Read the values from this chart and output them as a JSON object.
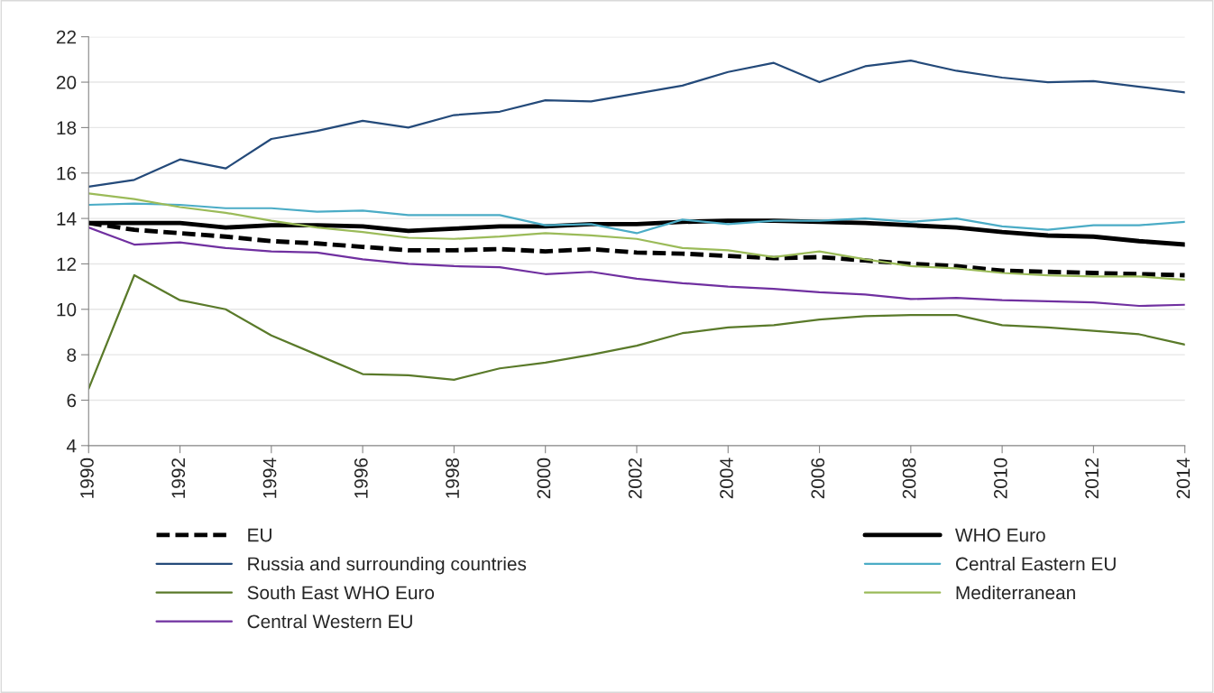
{
  "chart_data": {
    "type": "line",
    "x": [
      1990,
      1991,
      1992,
      1993,
      1994,
      1995,
      1996,
      1997,
      1998,
      1999,
      2000,
      2001,
      2002,
      2003,
      2004,
      2005,
      2006,
      2007,
      2008,
      2009,
      2010,
      2011,
      2012,
      2013,
      2014
    ],
    "xlim": [
      1990,
      2014
    ],
    "xticks": [
      1990,
      1992,
      1994,
      1996,
      1998,
      2000,
      2002,
      2004,
      2006,
      2008,
      2010,
      2012,
      2014
    ],
    "ylim": [
      4,
      22
    ],
    "yticks": [
      4,
      6,
      8,
      10,
      12,
      14,
      16,
      18,
      20,
      22
    ],
    "grid": "y",
    "legend": "bottom",
    "series": [
      {
        "name": "EU",
        "color": "#000000",
        "line_style": "dashed",
        "values": [
          13.8,
          13.5,
          13.35,
          13.2,
          13.0,
          12.9,
          12.75,
          12.6,
          12.6,
          12.65,
          12.55,
          12.65,
          12.5,
          12.45,
          12.35,
          12.25,
          12.3,
          12.15,
          12.0,
          11.9,
          11.7,
          11.65,
          11.6,
          11.55,
          11.5
        ]
      },
      {
        "name": "WHO Euro",
        "color": "#000000",
        "line_style": "solid",
        "values": [
          13.8,
          13.8,
          13.8,
          13.6,
          13.7,
          13.7,
          13.65,
          13.45,
          13.55,
          13.65,
          13.65,
          13.75,
          13.75,
          13.85,
          13.9,
          13.9,
          13.85,
          13.8,
          13.7,
          13.6,
          13.4,
          13.25,
          13.2,
          13.0,
          12.85
        ]
      },
      {
        "name": "Russia and surrounding countries",
        "color": "#244a7a",
        "line_style": "solid",
        "values": [
          15.4,
          15.7,
          16.6,
          16.2,
          17.5,
          17.85,
          18.3,
          18.0,
          18.55,
          18.7,
          19.2,
          19.15,
          19.5,
          19.85,
          20.45,
          20.85,
          20.0,
          20.7,
          20.95,
          20.5,
          20.2,
          20.0,
          20.05,
          19.8,
          19.55
        ]
      },
      {
        "name": "Central Eastern EU",
        "color": "#4bacc6",
        "line_style": "solid",
        "values": [
          14.6,
          14.65,
          14.6,
          14.45,
          14.45,
          14.3,
          14.35,
          14.15,
          14.15,
          14.15,
          13.7,
          13.75,
          13.35,
          13.95,
          13.75,
          13.9,
          13.9,
          14.0,
          13.85,
          14.0,
          13.65,
          13.5,
          13.7,
          13.7,
          13.85
        ]
      },
      {
        "name": "South East WHO Euro",
        "color": "#5a7a2a",
        "line_style": "solid",
        "values": [
          6.5,
          11.5,
          10.4,
          10.0,
          8.85,
          8.0,
          7.15,
          7.1,
          6.9,
          7.4,
          7.65,
          8.0,
          8.4,
          8.95,
          9.2,
          9.3,
          9.55,
          9.7,
          9.75,
          9.75,
          9.3,
          9.2,
          9.05,
          8.9,
          8.45
        ]
      },
      {
        "name": "Mediterranean",
        "color": "#9bbb59",
        "line_style": "solid",
        "values": [
          15.1,
          14.85,
          14.5,
          14.25,
          13.9,
          13.6,
          13.4,
          13.15,
          13.1,
          13.2,
          13.35,
          13.25,
          13.1,
          12.7,
          12.6,
          12.3,
          12.55,
          12.2,
          11.9,
          11.8,
          11.6,
          11.5,
          11.45,
          11.45,
          11.3
        ]
      },
      {
        "name": "Central Western EU",
        "color": "#7030a0",
        "line_style": "solid",
        "values": [
          13.6,
          12.85,
          12.95,
          12.7,
          12.55,
          12.5,
          12.2,
          12.0,
          11.9,
          11.85,
          11.55,
          11.65,
          11.35,
          11.15,
          11.0,
          10.9,
          10.75,
          10.65,
          10.45,
          10.5,
          10.4,
          10.35,
          10.3,
          10.15,
          10.2
        ]
      }
    ]
  }
}
